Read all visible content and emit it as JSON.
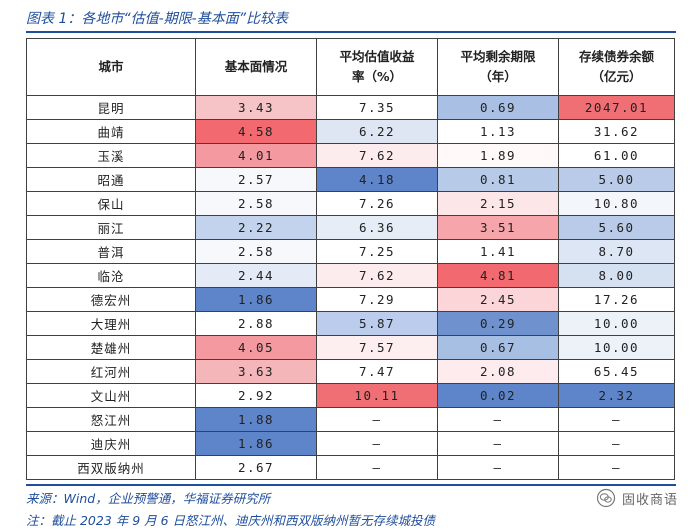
{
  "figure": {
    "title": "图表 1：各地市“估值-期限-基本面”比较表",
    "source": "来源：Wind，企业预警通，华福证券研究所",
    "note": "注：截止 2023 年 9 月 6 日怒江州、迪庆州和西双版纳州暂无存续城投债",
    "watermark": "固收商语",
    "watermark_icon": "wechat-icon"
  },
  "table": {
    "headers": [
      "城市",
      "基本面情况",
      "平均估值收益\n率（%）",
      "平均剩余期限\n（年）",
      "存续债券余额\n（亿元）"
    ],
    "rows": [
      {
        "city": "昆明",
        "fund": "3.43",
        "yield": "7.35",
        "term": "0.69",
        "bal": "2047.01",
        "c": [
          "#f6c3c7",
          "#ffffff",
          "#a9c0e4",
          "#f06f74"
        ]
      },
      {
        "city": "曲靖",
        "fund": "4.58",
        "yield": "6.22",
        "term": "1.13",
        "bal": "31.62",
        "c": [
          "#f26a70",
          "#dfe6f3",
          "#ffffff",
          "#ffffff"
        ]
      },
      {
        "city": "玉溪",
        "fund": "4.01",
        "yield": "7.62",
        "term": "1.89",
        "bal": "61.00",
        "c": [
          "#f4999f",
          "#fdecee",
          "#fff9f9",
          "#ffffff"
        ]
      },
      {
        "city": "昭通",
        "fund": "2.57",
        "yield": "4.18",
        "term": "0.81",
        "bal": "5.00",
        "c": [
          "#f6f8fc",
          "#5e85c9",
          "#b7cbe9",
          "#b9cbe8"
        ]
      },
      {
        "city": "保山",
        "fund": "2.58",
        "yield": "7.26",
        "term": "2.15",
        "bal": "10.80",
        "c": [
          "#f6f8fc",
          "#ffffff",
          "#fde6e8",
          "#f3f6fb"
        ]
      },
      {
        "city": "丽江",
        "fund": "2.22",
        "yield": "6.36",
        "term": "3.51",
        "bal": "5.60",
        "c": [
          "#c3d3ed",
          "#e7edf7",
          "#f6a5aa",
          "#b9cbe8"
        ]
      },
      {
        "city": "普洱",
        "fund": "2.58",
        "yield": "7.25",
        "term": "1.41",
        "bal": "8.70",
        "c": [
          "#f6f8fc",
          "#ffffff",
          "#ffffff",
          "#dde6f4"
        ]
      },
      {
        "city": "临沧",
        "fund": "2.44",
        "yield": "7.62",
        "term": "4.81",
        "bal": "8.00",
        "c": [
          "#e4ebf6",
          "#fdecee",
          "#f2696f",
          "#d5e0f1"
        ]
      },
      {
        "city": "德宏州",
        "fund": "1.86",
        "yield": "7.29",
        "term": "2.45",
        "bal": "17.26",
        "c": [
          "#5e85c9",
          "#ffffff",
          "#fbd5d8",
          "#ffffff"
        ]
      },
      {
        "city": "大理州",
        "fund": "2.88",
        "yield": "5.87",
        "term": "0.29",
        "bal": "10.00",
        "c": [
          "#ffffff",
          "#bccced",
          "#6f92cf",
          "#edf2f9"
        ]
      },
      {
        "city": "楚雄州",
        "fund": "4.05",
        "yield": "7.57",
        "term": "0.67",
        "bal": "10.00",
        "c": [
          "#f4999f",
          "#fdeff0",
          "#a7bfe3",
          "#edf2f9"
        ]
      },
      {
        "city": "红河州",
        "fund": "3.63",
        "yield": "7.47",
        "term": "2.08",
        "bal": "65.45",
        "c": [
          "#f5b6ba",
          "#ffffff",
          "#fdebed",
          "#ffffff"
        ]
      },
      {
        "city": "文山州",
        "fund": "2.92",
        "yield": "10.11",
        "term": "0.02",
        "bal": "2.32",
        "c": [
          "#ffffff",
          "#f06f74",
          "#5e85c9",
          "#5e85c9"
        ]
      },
      {
        "city": "怒江州",
        "fund": "1.88",
        "yield": "–",
        "term": "–",
        "bal": "–",
        "c": [
          "#5e85c9",
          "#ffffff",
          "#ffffff",
          "#ffffff"
        ]
      },
      {
        "city": "迪庆州",
        "fund": "1.86",
        "yield": "–",
        "term": "–",
        "bal": "–",
        "c": [
          "#5e85c9",
          "#ffffff",
          "#ffffff",
          "#ffffff"
        ]
      },
      {
        "city": "西双版纳州",
        "fund": "2.67",
        "yield": "–",
        "term": "–",
        "bal": "–",
        "c": [
          "#ffffff",
          "#ffffff",
          "#ffffff",
          "#ffffff"
        ]
      }
    ]
  }
}
